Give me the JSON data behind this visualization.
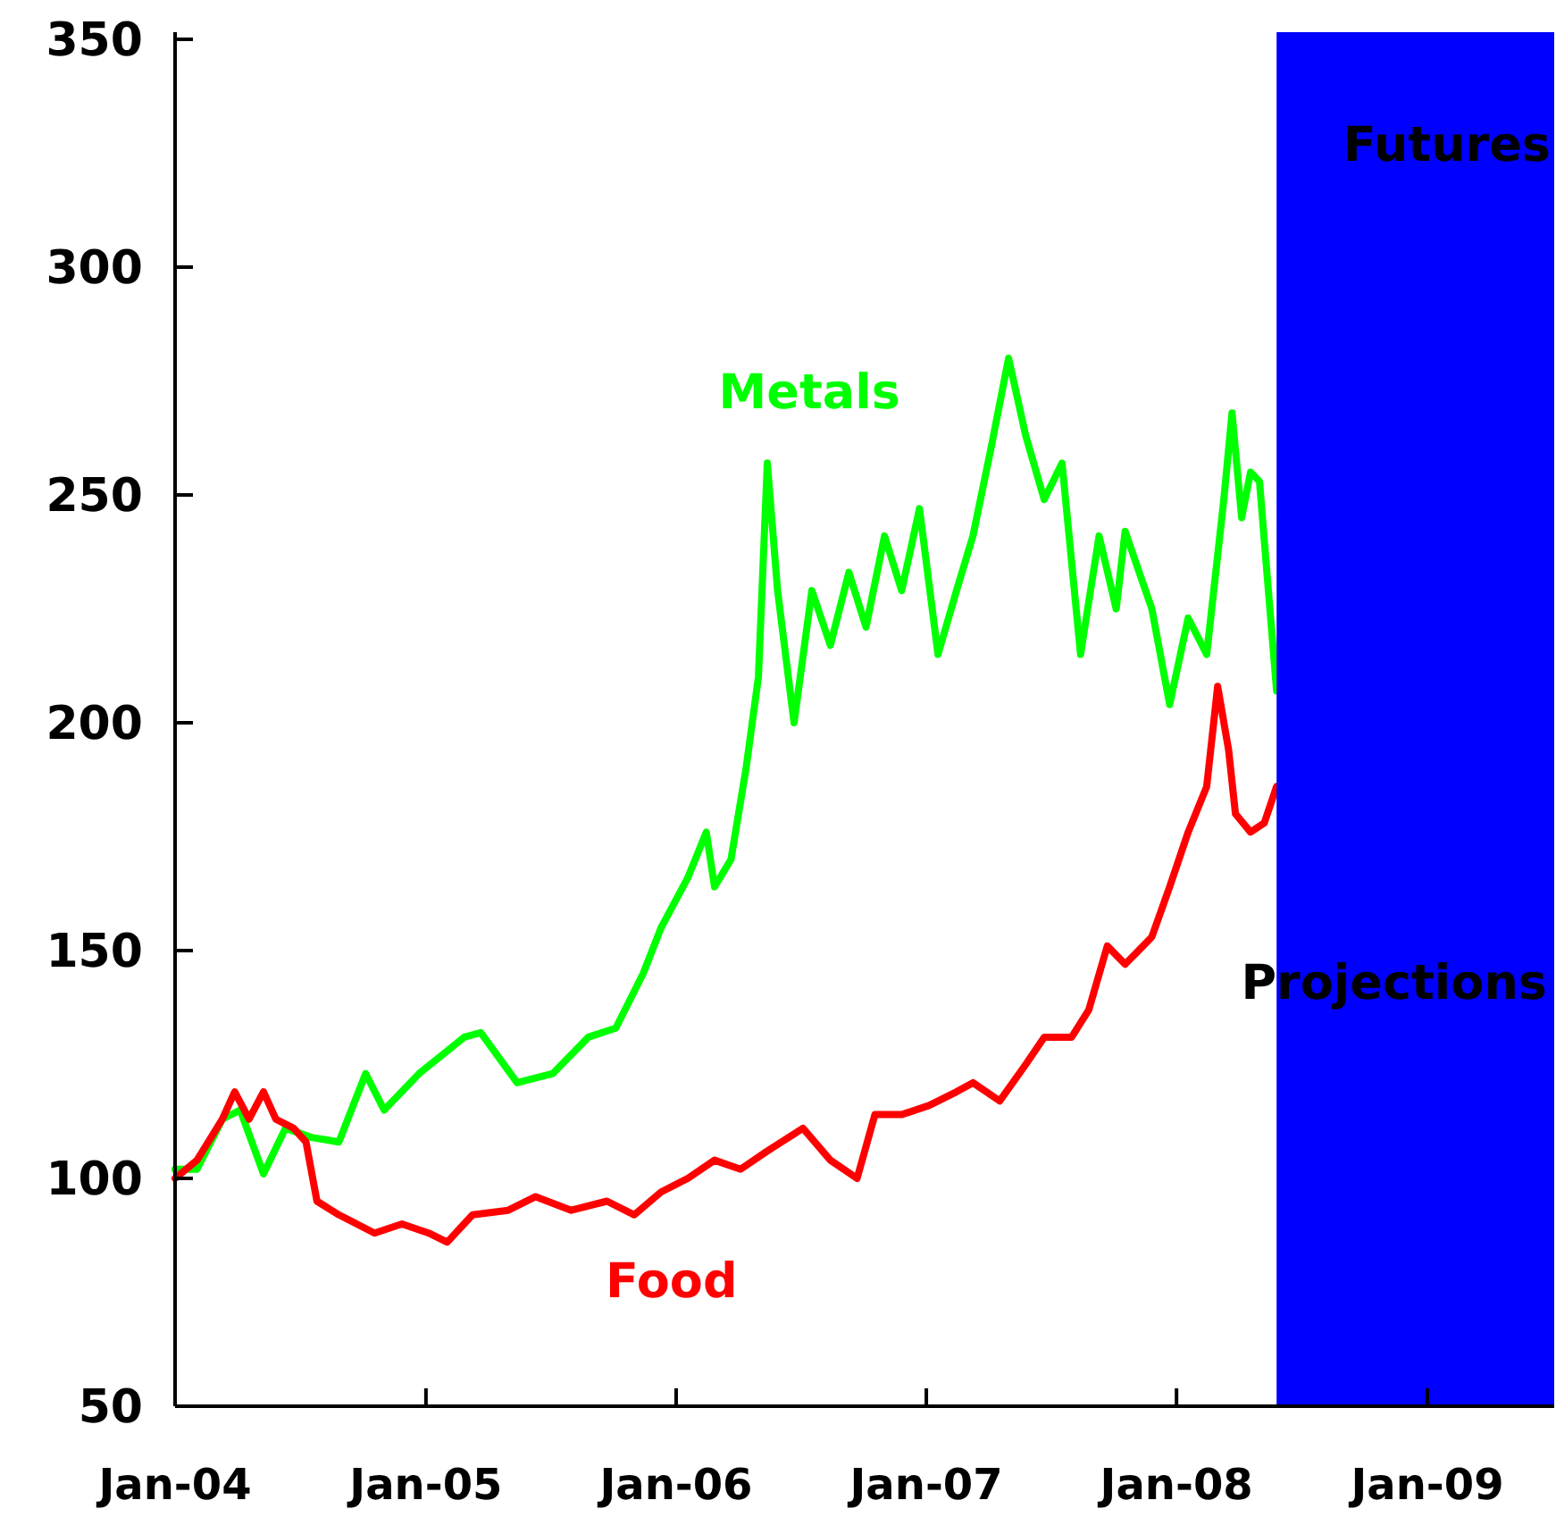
{
  "chart_data": {
    "type": "line",
    "grid": false,
    "line_style": "solid",
    "marker": "none",
    "xlim": [
      "2004-01-01",
      "2009-07-05"
    ],
    "xticks": [
      {
        "value": "2004-01-01",
        "label": "Jan-04"
      },
      {
        "value": "2005-01-01",
        "label": "Jan-05"
      },
      {
        "value": "2006-01-01",
        "label": "Jan-06"
      },
      {
        "value": "2007-01-01",
        "label": "Jan-07"
      },
      {
        "value": "2008-01-01",
        "label": "Jan-08"
      },
      {
        "value": "2009-01-01",
        "label": "Jan-09"
      }
    ],
    "ylim": [
      50,
      350
    ],
    "yticks": [
      50,
      100,
      150,
      200,
      250,
      300,
      350
    ],
    "series": [
      {
        "name": "Metals",
        "color": "#00ff00",
        "x": [
          "2004-01-01",
          "2004-02-02",
          "2004-03-10",
          "2004-04-05",
          "2004-05-09",
          "2004-06-10",
          "2004-07-18",
          "2004-08-27",
          "2004-10-05",
          "2004-11-01",
          "2004-12-22",
          "2005-02-26",
          "2005-03-22",
          "2005-05-14",
          "2005-07-05",
          "2005-08-26",
          "2005-10-05",
          "2005-11-14",
          "2005-12-10",
          "2006-01-18",
          "2006-02-14",
          "2006-02-26",
          "2006-03-22",
          "2006-04-13",
          "2006-05-01",
          "2006-05-14",
          "2006-05-29",
          "2006-06-22",
          "2006-07-18",
          "2006-08-14",
          "2006-09-10",
          "2006-10-05",
          "2006-11-01",
          "2006-11-26",
          "2006-12-22",
          "2007-01-18",
          "2007-02-14",
          "2007-03-10",
          "2007-04-05",
          "2007-05-01",
          "2007-05-26",
          "2007-06-22",
          "2007-07-18",
          "2007-08-14",
          "2007-09-10",
          "2007-10-05",
          "2007-10-18",
          "2007-11-26",
          "2007-12-22",
          "2008-01-18",
          "2008-02-14",
          "2008-03-10",
          "2008-03-22",
          "2008-04-05",
          "2008-04-18",
          "2008-05-01",
          "2008-05-26"
        ],
        "values": [
          102,
          102,
          113,
          115,
          101,
          111,
          109,
          108,
          123,
          115,
          123,
          131,
          132,
          121,
          123,
          131,
          133,
          145,
          155,
          166,
          176,
          164,
          170,
          190,
          210,
          257,
          229,
          200,
          229,
          217,
          233,
          221,
          241,
          229,
          247,
          215,
          229,
          241,
          260,
          280,
          263,
          249,
          257,
          215,
          241,
          225,
          242,
          225,
          204,
          223,
          215,
          249,
          268,
          245,
          255,
          253,
          207
        ]
      },
      {
        "name": "Food",
        "color": "#ff0000",
        "x": [
          "2004-01-01",
          "2004-02-02",
          "2004-03-10",
          "2004-03-28",
          "2004-04-18",
          "2004-05-09",
          "2004-05-27",
          "2004-06-22",
          "2004-07-10",
          "2004-07-26",
          "2004-08-27",
          "2004-10-18",
          "2004-11-27",
          "2005-01-05",
          "2005-02-01",
          "2005-03-10",
          "2005-05-01",
          "2005-06-10",
          "2005-08-01",
          "2005-09-22",
          "2005-11-01",
          "2005-12-10",
          "2006-01-18",
          "2006-02-26",
          "2006-04-05",
          "2006-05-14",
          "2006-07-05",
          "2006-08-14",
          "2006-09-22",
          "2006-10-18",
          "2006-11-26",
          "2007-01-05",
          "2007-02-14",
          "2007-03-10",
          "2007-04-18",
          "2007-05-26",
          "2007-06-22",
          "2007-08-01",
          "2007-08-26",
          "2007-09-22",
          "2007-10-18",
          "2007-11-26",
          "2007-12-22",
          "2008-01-18",
          "2008-02-14",
          "2008-03-01",
          "2008-03-17",
          "2008-03-27",
          "2008-04-18",
          "2008-05-08",
          "2008-05-26"
        ],
        "values": [
          100,
          104,
          113,
          119,
          113,
          119,
          113,
          111,
          108,
          95,
          92,
          88,
          90,
          88,
          86,
          92,
          93,
          96,
          93,
          95,
          92,
          97,
          100,
          104,
          102,
          106,
          111,
          104,
          100,
          114,
          114,
          116,
          119,
          121,
          117,
          125,
          131,
          131,
          137,
          151,
          147,
          153,
          164,
          176,
          186,
          208,
          194,
          180,
          176,
          178,
          186
        ]
      }
    ],
    "bands": [
      {
        "axis": "x",
        "from": "2008-05-26",
        "to": "2009-07-05",
        "label": "Futures",
        "color": "#0000ff"
      }
    ],
    "annotations": [
      "Projections"
    ]
  }
}
